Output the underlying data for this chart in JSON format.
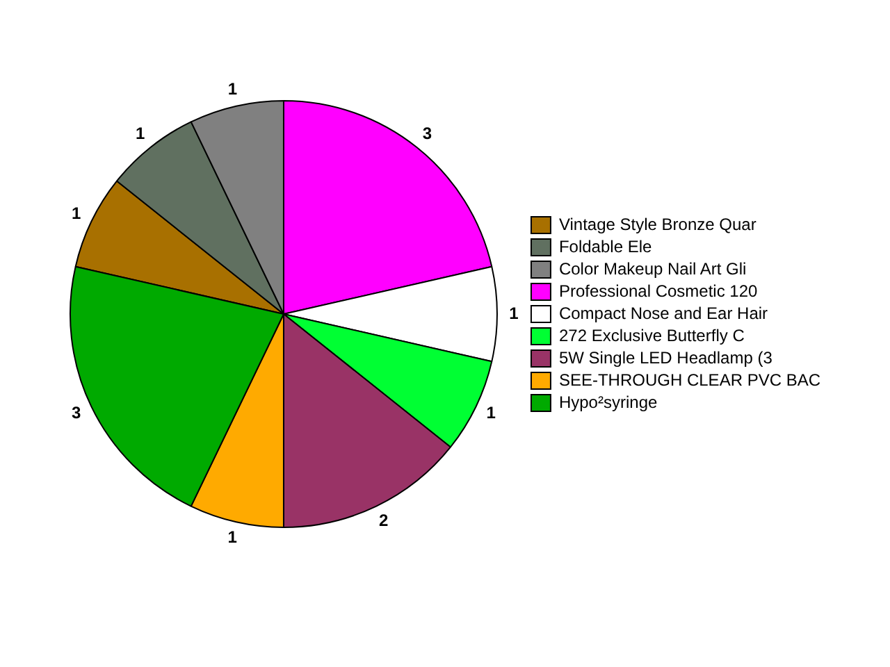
{
  "chart_data": {
    "type": "pie",
    "categories": [
      "Vintage Style Bronze Quar",
      "Foldable Ele",
      "Color Makeup Nail Art Gli",
      "Professional Cosmetic 120",
      "Compact Nose and Ear Hair",
      "272 Exclusive Butterfly C",
      "5W Single LED Headlamp (3",
      "SEE-THROUGH CLEAR PVC BAC",
      "Hypo²syringe"
    ],
    "values": [
      1,
      1,
      1,
      3,
      1,
      1,
      2,
      1,
      3
    ],
    "colors": [
      "#a87000",
      "#607060",
      "#808080",
      "#ff00ff",
      "#ffffff",
      "#00ff33",
      "#993366",
      "#ffaa00",
      "#00aa00"
    ],
    "data_labels": true,
    "legend": "right"
  }
}
